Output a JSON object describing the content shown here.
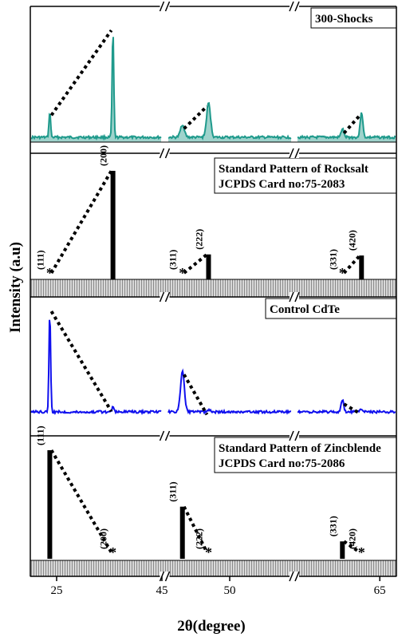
{
  "chart_data": {
    "type": "line",
    "xlabel": "2θ(degree)",
    "ylabel": "Intensity (a.u)",
    "x_axis": {
      "segments": [
        [
          20,
          45
        ],
        [
          45,
          55
        ],
        [
          55,
          67
        ]
      ],
      "ticks": [
        {
          "value": 25,
          "label": "25"
        },
        {
          "value": 45,
          "label": "45"
        },
        {
          "value": 50,
          "label": "50"
        },
        {
          "value": 65,
          "label": "65"
        }
      ],
      "axis_break_markers": "//"
    },
    "panels": [
      {
        "id": "shocks",
        "label": "300-Shocks",
        "style": "filled-line",
        "color": "#1f9a8c",
        "fill_color": "#9fd3cc",
        "peaks": [
          {
            "x": 23.7,
            "height": 0.24
          },
          {
            "x": 35.7,
            "height": 1.0
          },
          {
            "x": 46.2,
            "height": 0.12
          },
          {
            "x": 48.3,
            "height": 0.32
          },
          {
            "x": 60.5,
            "height": 0.08
          },
          {
            "x": 62.8,
            "height": 0.24
          }
        ],
        "tie_lines": [
          [
            0,
            1
          ],
          [
            2,
            3
          ],
          [
            4,
            5
          ]
        ]
      },
      {
        "id": "rocksalt",
        "label": "Standard Pattern of Rocksalt",
        "label_line2": "JCPDS Card no:75-2083",
        "style": "stick",
        "peaks": [
          {
            "x": 23.7,
            "height": 0.0,
            "hkl": "(111)",
            "asterisk": true
          },
          {
            "x": 35.7,
            "height": 1.0,
            "hkl": "(200)"
          },
          {
            "x": 46.2,
            "height": 0.0,
            "hkl": "(311)",
            "asterisk": true
          },
          {
            "x": 48.3,
            "height": 0.23,
            "hkl": "(222)"
          },
          {
            "x": 60.5,
            "height": 0.0,
            "hkl": "(331)",
            "asterisk": true
          },
          {
            "x": 62.8,
            "height": 0.22,
            "hkl": "(420)"
          }
        ],
        "tie_lines": [
          [
            0,
            1
          ],
          [
            2,
            3
          ],
          [
            4,
            5
          ]
        ]
      },
      {
        "id": "control",
        "label": "Control CdTe",
        "style": "line",
        "color": "#1010ee",
        "peaks": [
          {
            "x": 23.7,
            "height": 1.0
          },
          {
            "x": 35.7,
            "height": 0.05
          },
          {
            "x": 46.2,
            "height": 0.4
          },
          {
            "x": 48.3,
            "height": 0.02
          },
          {
            "x": 60.5,
            "height": 0.12
          },
          {
            "x": 62.8,
            "height": 0.03
          }
        ],
        "tie_lines": [
          [
            0,
            1
          ],
          [
            2,
            3
          ],
          [
            4,
            5
          ]
        ]
      },
      {
        "id": "zincblende",
        "label": "Standard Pattern of Zincblende",
        "label_line2": "JCPDS Card no:75-2086",
        "style": "stick",
        "peaks": [
          {
            "x": 23.7,
            "height": 1.0,
            "hkl": "(111)"
          },
          {
            "x": 35.7,
            "height": 0.0,
            "hkl": "(200)",
            "asterisk": true
          },
          {
            "x": 46.2,
            "height": 0.48,
            "hkl": "(311)"
          },
          {
            "x": 48.3,
            "height": 0.0,
            "hkl": "(222)",
            "asterisk": true
          },
          {
            "x": 60.5,
            "height": 0.16,
            "hkl": "(331)"
          },
          {
            "x": 62.8,
            "height": 0.0,
            "hkl": "(420)",
            "asterisk": true
          }
        ],
        "tie_lines": [
          [
            0,
            1
          ],
          [
            2,
            3
          ],
          [
            4,
            5
          ]
        ]
      }
    ]
  }
}
